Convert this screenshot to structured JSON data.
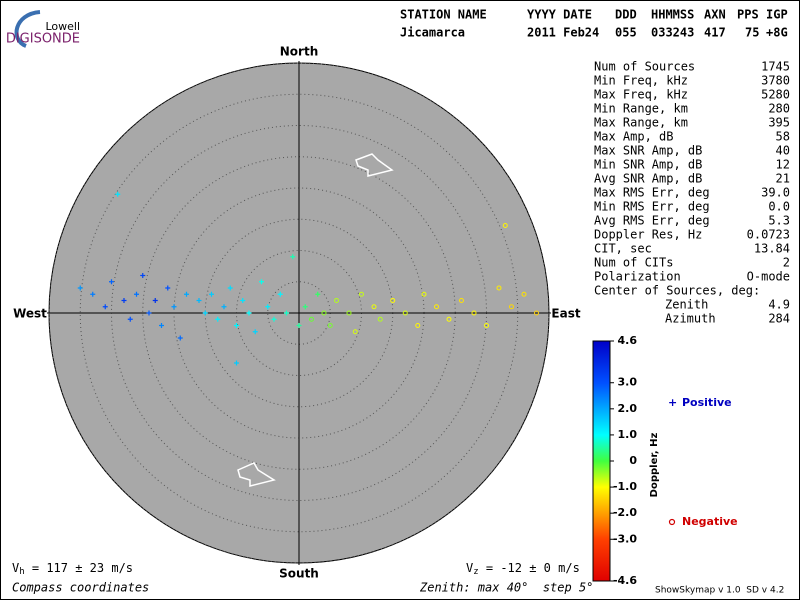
{
  "logo": {
    "line1": "Lowell",
    "line2": "DIGISONDE"
  },
  "header": {
    "labels": [
      "STATION NAME",
      "YYYY DATE",
      "DDD",
      "HHMMSS",
      "AXN",
      "PPS",
      "IGP"
    ],
    "values": [
      "Jicamarca",
      "2011 Feb24",
      "055",
      "033243",
      "417",
      "75",
      "+8G"
    ]
  },
  "stats": [
    {
      "label": "Num of Sources",
      "value": "1745"
    },
    {
      "label": "Min Freq, kHz",
      "value": "3780"
    },
    {
      "label": "Max Freq, kHz",
      "value": "5280"
    },
    {
      "label": "Min Range, km",
      "value": "280"
    },
    {
      "label": "Max Range, km",
      "value": "395"
    },
    {
      "label": "Max Amp, dB",
      "value": "58"
    },
    {
      "label": "Max SNR Amp, dB",
      "value": "40"
    },
    {
      "label": "Min SNR Amp, dB",
      "value": "12"
    },
    {
      "label": "Avg SNR Amp, dB",
      "value": "21"
    },
    {
      "label": "Max RMS Err, deg",
      "value": "39.0"
    },
    {
      "label": "Min RMS Err, deg",
      "value": "0.0"
    },
    {
      "label": "Avg RMS Err, deg",
      "value": "5.3"
    },
    {
      "label": "Doppler Res, Hz",
      "value": "0.0723"
    },
    {
      "label": "CIT, sec",
      "value": "13.84"
    },
    {
      "label": "Num of CITs",
      "value": "2"
    },
    {
      "label": "Polarization",
      "value": "O-mode"
    }
  ],
  "center": {
    "title": "Center of Sources, deg:",
    "rows": [
      {
        "label": "Zenith",
        "value": "4.9"
      },
      {
        "label": "Azimuth",
        "value": "284"
      }
    ]
  },
  "chart_data": {
    "type": "skymap",
    "compass": {
      "north": "North",
      "south": "South",
      "west": "West",
      "east": "East"
    },
    "rlim": [
      0,
      40
    ],
    "rticks": [
      5,
      10,
      15,
      20,
      25,
      30,
      35,
      40
    ],
    "x": [
      -35,
      -33,
      -31,
      -30,
      -28,
      -27,
      -26,
      -25,
      -24,
      -23,
      -22,
      -21,
      -20,
      -19,
      -18,
      -16,
      -15,
      -14,
      -13,
      -12,
      -11,
      -10,
      -9,
      -8,
      -7,
      -6,
      -5,
      -4,
      -3,
      -2,
      -1,
      0,
      -29,
      -10,
      1,
      2,
      3,
      4,
      5,
      6,
      8,
      9,
      10,
      12,
      13,
      15,
      17,
      19,
      20,
      22,
      24,
      26,
      28,
      30,
      32,
      34,
      36,
      38,
      33
    ],
    "y": [
      4,
      3,
      1,
      5,
      2,
      -1,
      3,
      6,
      0,
      2,
      -2,
      4,
      1,
      -4,
      3,
      2,
      0,
      3,
      -1,
      1,
      4,
      -2,
      2,
      0,
      -3,
      5,
      1,
      -1,
      3,
      0,
      9,
      -2,
      19,
      -8,
      1,
      -1,
      3,
      0,
      -2,
      2,
      0,
      -3,
      3,
      1,
      -1,
      2,
      0,
      -2,
      3,
      1,
      -1,
      2,
      0,
      -2,
      4,
      1,
      3,
      0,
      14
    ],
    "values": [
      2.2,
      2.5,
      3.1,
      2.8,
      3.4,
      3.0,
      2.6,
      3.2,
      2.9,
      3.6,
      2.4,
      3.0,
      2.2,
      2.7,
      2.0,
      1.8,
      1.5,
      1.6,
      1.2,
      1.9,
      1.4,
      1.1,
      1.3,
      1.0,
      1.5,
      0.9,
      1.2,
      0.8,
      1.1,
      0.7,
      0.6,
      0.5,
      1.3,
      1.6,
      0.3,
      -0.2,
      0.2,
      -0.4,
      -0.3,
      -0.6,
      -0.5,
      -0.8,
      -0.7,
      -0.9,
      -0.6,
      -1.0,
      -0.8,
      -1.1,
      -0.9,
      -1.2,
      -1.0,
      -1.3,
      -1.1,
      -1.0,
      -1.2,
      -1.4,
      -1.3,
      -1.5,
      -1.1
    ],
    "colorbar": {
      "label": "Doppler, Hz",
      "clim": [
        -4.6,
        4.6
      ],
      "ticks": [
        4.6,
        {
          "value": 3,
          "label": "3.0"
        },
        {
          "value": 2,
          "label": "2.0"
        },
        {
          "value": 1,
          "label": "1.0"
        },
        0,
        {
          "value": -1,
          "label": "-1.0"
        },
        {
          "value": -2,
          "label": "-2.0"
        },
        {
          "value": -3,
          "label": "-3.0"
        },
        -4.6
      ],
      "colors": [
        "#0000c8",
        "#0050ff",
        "#00a8ff",
        "#00ffff",
        "#40ff40",
        "#ffff00",
        "#ffa000",
        "#ff4000",
        "#e00000"
      ]
    },
    "legend": {
      "positive": "Positive",
      "negative": "Negative",
      "positive_color": "#0000c0",
      "negative_color": "#d00000"
    },
    "velocity_h": {
      "symbol": "V",
      "subscript": "h",
      "text": " = 117 ± 23 m/s"
    },
    "velocity_z": {
      "symbol": "V",
      "subscript": "z",
      "text": " = -12 ± 0 m/s"
    },
    "coordinates": "Compass coordinates",
    "zenith_note": "Zenith: max 40°  step 5°",
    "version": "ShowSkymap v 1.0  SD v 4.2"
  }
}
